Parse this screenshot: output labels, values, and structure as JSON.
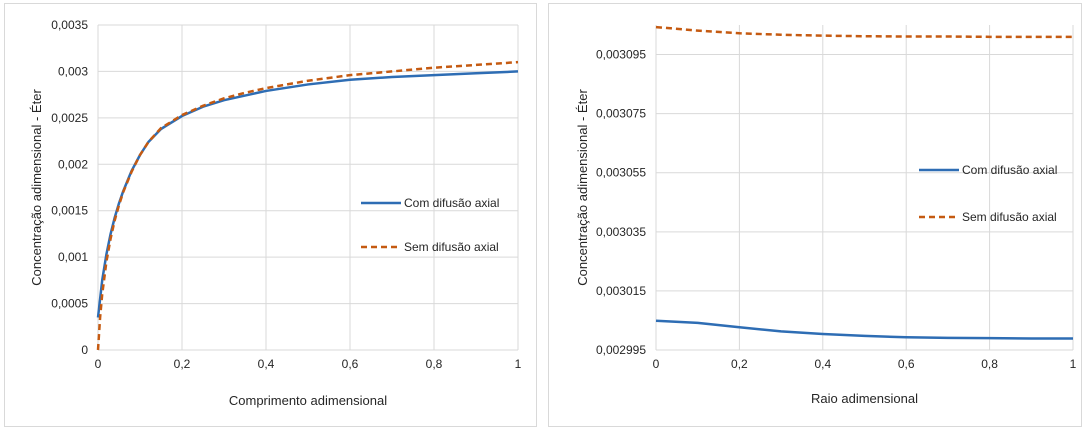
{
  "chart_data": [
    {
      "type": "line",
      "title": "",
      "xlabel": "Comprimento adimensional",
      "ylabel": "Concentração adimensional - Éter",
      "xlim": [
        0,
        1
      ],
      "ylim": [
        0,
        0.0035
      ],
      "grid": true,
      "legend_position": "right",
      "x_ticks": [
        0,
        0.2,
        0.4,
        0.6,
        0.8,
        1
      ],
      "x_tick_labels": [
        "0",
        "0,2",
        "0,4",
        "0,6",
        "0,8",
        "1"
      ],
      "y_ticks": [
        0,
        0.0005,
        0.001,
        0.0015,
        0.002,
        0.0025,
        0.003,
        0.0035
      ],
      "y_tick_labels": [
        "0",
        "0,0005",
        "0,001",
        "0,0015",
        "0,002",
        "0,0025",
        "0,003",
        "0,0035"
      ],
      "series": [
        {
          "name": "Com difusão axial",
          "color": "#2e6db4",
          "dash": "solid",
          "x": [
            0,
            0.005,
            0.01,
            0.02,
            0.03,
            0.04,
            0.05,
            0.06,
            0.08,
            0.1,
            0.12,
            0.15,
            0.2,
            0.25,
            0.3,
            0.35,
            0.4,
            0.5,
            0.6,
            0.7,
            0.8,
            0.9,
            1.0
          ],
          "y": [
            0.00035,
            0.00055,
            0.00075,
            0.00103,
            0.00125,
            0.00143,
            0.00158,
            0.00171,
            0.00193,
            0.0021,
            0.00224,
            0.00238,
            0.00252,
            0.00262,
            0.00269,
            0.00274,
            0.00279,
            0.00286,
            0.00291,
            0.00294,
            0.00296,
            0.00298,
            0.003
          ]
        },
        {
          "name": "Sem difusão axial",
          "color": "#c55a11",
          "dash": "dashed",
          "x": [
            0,
            0.005,
            0.01,
            0.02,
            0.03,
            0.04,
            0.05,
            0.06,
            0.08,
            0.1,
            0.12,
            0.15,
            0.2,
            0.25,
            0.3,
            0.35,
            0.4,
            0.5,
            0.6,
            0.7,
            0.8,
            0.9,
            1.0
          ],
          "y": [
            0,
            0.00035,
            0.0006,
            0.00095,
            0.0012,
            0.0014,
            0.00156,
            0.0017,
            0.00192,
            0.0021,
            0.00224,
            0.00239,
            0.00253,
            0.00263,
            0.00271,
            0.00277,
            0.00282,
            0.0029,
            0.00296,
            0.003,
            0.00304,
            0.00307,
            0.0031
          ]
        }
      ]
    },
    {
      "type": "line",
      "title": "",
      "xlabel": "Raio adimensional",
      "ylabel": "Concentração adimensional - Éter",
      "xlim": [
        0,
        1
      ],
      "ylim": [
        0.002995,
        0.003105
      ],
      "grid": true,
      "legend_position": "right",
      "x_ticks": [
        0,
        0.2,
        0.4,
        0.6,
        0.8,
        1
      ],
      "x_tick_labels": [
        "0",
        "0,2",
        "0,4",
        "0,6",
        "0,8",
        "1"
      ],
      "y_ticks": [
        0.002995,
        0.003015,
        0.003035,
        0.003055,
        0.003075,
        0.003095
      ],
      "y_tick_labels": [
        "0,002995",
        "0,003015",
        "0,003035",
        "0,003055",
        "0,003075",
        "0,003095"
      ],
      "series": [
        {
          "name": "Com difusão axial",
          "color": "#2e6db4",
          "dash": "solid",
          "x": [
            0,
            0.1,
            0.2,
            0.3,
            0.4,
            0.5,
            0.6,
            0.7,
            0.8,
            0.9,
            1.0
          ],
          "y": [
            0.0030049,
            0.0030042,
            0.0030027,
            0.0030013,
            0.0030004,
            0.0029998,
            0.0029993,
            0.0029991,
            0.002999,
            0.0029989,
            0.0029989
          ]
        },
        {
          "name": "Sem difusão axial",
          "color": "#c55a11",
          "dash": "dashed",
          "x": [
            0,
            0.1,
            0.2,
            0.3,
            0.4,
            0.5,
            0.6,
            0.7,
            0.8,
            0.9,
            1.0
          ],
          "y": [
            0.0031043,
            0.0031031,
            0.0031022,
            0.0031017,
            0.0031014,
            0.0031012,
            0.0031011,
            0.0031011,
            0.003101,
            0.003101,
            0.003101
          ]
        }
      ]
    }
  ]
}
